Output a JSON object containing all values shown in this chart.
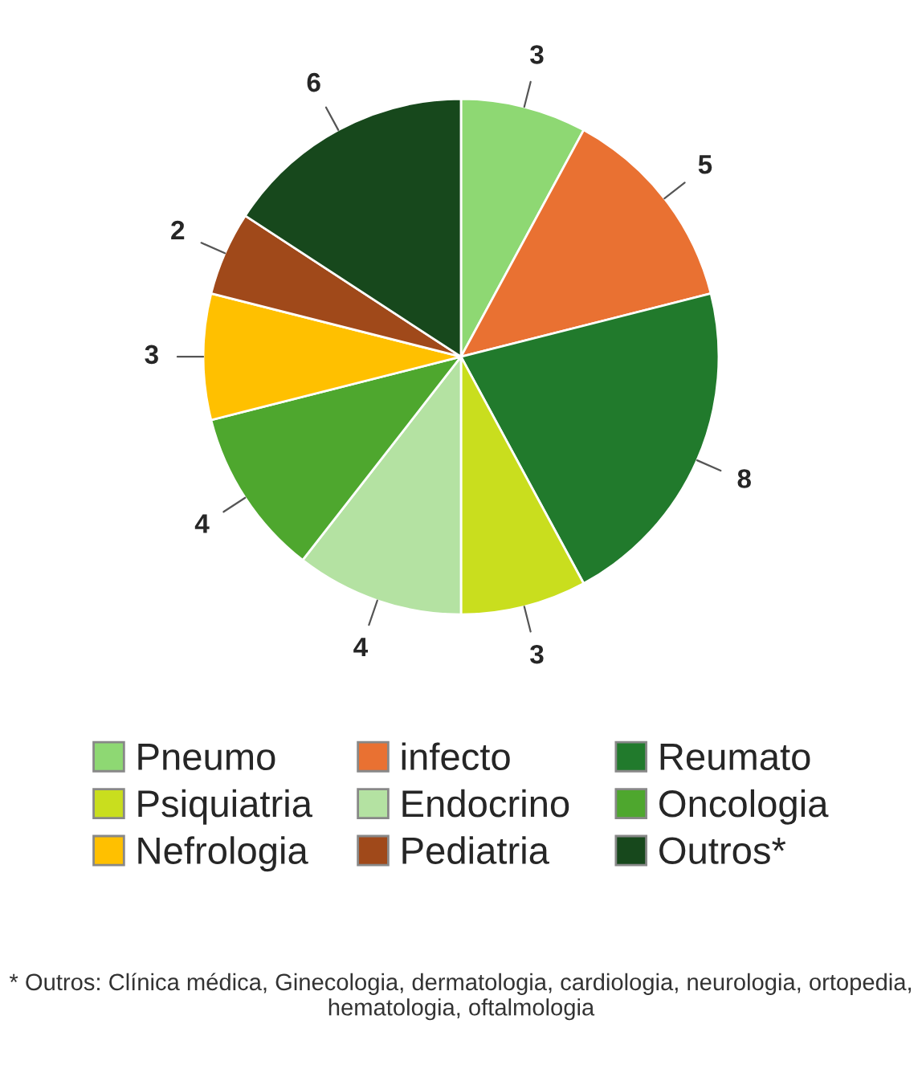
{
  "chart_data": {
    "type": "pie",
    "categories": [
      "Pneumo",
      "infecto",
      "Reumato",
      "Psiquiatria",
      "Endocrino",
      "Oncologia",
      "Nefrologia",
      "Pediatria",
      "Outros*"
    ],
    "values": [
      3,
      5,
      8,
      3,
      4,
      4,
      3,
      2,
      6
    ],
    "colors": [
      "#8ed873",
      "#e97132",
      "#217a2c",
      "#c9de1e",
      "#b4e2a2",
      "#4ea72e",
      "#ffc000",
      "#a0491a",
      "#17481c"
    ],
    "data_labels": true,
    "legend": "bottom",
    "annotations": [
      "* Outros: Clínica médica, Ginecologia, dermatologia, cardiologia, neurologia, ortopedia, hematologia, oftalmologia"
    ]
  }
}
